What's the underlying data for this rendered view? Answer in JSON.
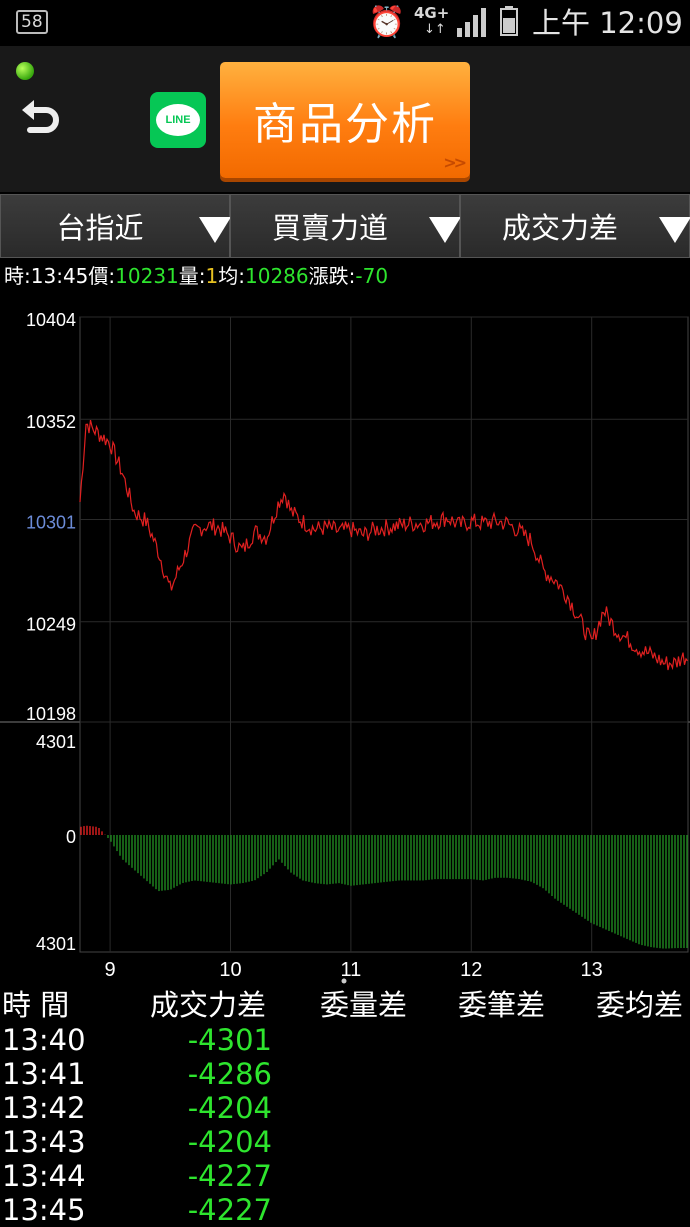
{
  "status_bar": {
    "notification_count": "58",
    "network": "4G+",
    "network_arrows": "↓↑",
    "time": "上午 12:09"
  },
  "header": {
    "line_label": "LINE",
    "title_button": "商品分析",
    "title_more": ">>"
  },
  "selectors": [
    {
      "label": "台指近"
    },
    {
      "label": "買賣力道"
    },
    {
      "label": "成交力差"
    }
  ],
  "quote": {
    "time_label": "時:",
    "time": "13:45",
    "price_label": "價:",
    "price": "10231",
    "volume_label": "量:",
    "volume": "1",
    "avg_label": "均:",
    "avg": "10286",
    "change_label": "漲跌:",
    "change": "-70"
  },
  "chart_data": {
    "type": "line",
    "price_chart": {
      "y_ticks": [
        "10404",
        "10352",
        "10301",
        "10249",
        "10198"
      ],
      "ylim": [
        10198,
        10404
      ],
      "reference_price": 10301,
      "series": [
        {
          "color": "#e02020",
          "x": [
            8.75,
            8.8,
            8.9,
            9.0,
            9.1,
            9.2,
            9.3,
            9.4,
            9.5,
            9.6,
            9.7,
            9.8,
            9.9,
            10.0,
            10.1,
            10.2,
            10.3,
            10.4,
            10.45,
            10.5,
            10.6,
            10.7,
            10.8,
            10.9,
            11.0,
            11.1,
            11.2,
            11.3,
            11.4,
            11.5,
            11.6,
            11.7,
            11.8,
            11.9,
            12.0,
            12.1,
            12.2,
            12.3,
            12.4,
            12.5,
            12.6,
            12.7,
            12.8,
            12.9,
            13.0,
            13.1,
            13.2,
            13.3,
            13.4,
            13.5,
            13.6,
            13.7,
            13.75
          ],
          "y": [
            10310,
            10350,
            10345,
            10340,
            10325,
            10305,
            10300,
            10285,
            10265,
            10280,
            10295,
            10298,
            10297,
            10292,
            10285,
            10295,
            10292,
            10310,
            10315,
            10305,
            10300,
            10296,
            10297,
            10295,
            10296,
            10293,
            10296,
            10297,
            10298,
            10299,
            10299,
            10300,
            10302,
            10298,
            10300,
            10299,
            10300,
            10299,
            10295,
            10290,
            10275,
            10270,
            10262,
            10250,
            10238,
            10255,
            10245,
            10240,
            10235,
            10232,
            10228,
            10228,
            10231
          ]
        }
      ]
    },
    "force_chart": {
      "y_ticks": [
        "4301",
        "0",
        "4301"
      ],
      "ylim": [
        -4301,
        4301
      ],
      "series": [
        {
          "color_positive": "#e02020",
          "color_negative": "#1f8a1f",
          "x": [
            8.75,
            8.8,
            8.9,
            9.0,
            9.1,
            9.2,
            9.3,
            9.4,
            9.5,
            9.6,
            9.7,
            9.8,
            9.9,
            10.0,
            10.1,
            10.2,
            10.3,
            10.4,
            10.5,
            10.6,
            10.7,
            10.8,
            10.9,
            11.0,
            11.1,
            11.2,
            11.3,
            11.4,
            11.5,
            11.6,
            11.7,
            11.8,
            11.9,
            12.0,
            12.1,
            12.2,
            12.3,
            12.4,
            12.5,
            12.6,
            12.7,
            12.8,
            12.9,
            13.0,
            13.1,
            13.2,
            13.3,
            13.4,
            13.5,
            13.6,
            13.7,
            13.75
          ],
          "y": [
            300,
            350,
            300,
            -200,
            -900,
            -1300,
            -1700,
            -2100,
            -2050,
            -1800,
            -1700,
            -1750,
            -1800,
            -1850,
            -1800,
            -1700,
            -1400,
            -900,
            -1400,
            -1700,
            -1800,
            -1850,
            -1800,
            -1900,
            -1850,
            -1800,
            -1750,
            -1700,
            -1700,
            -1700,
            -1650,
            -1650,
            -1650,
            -1650,
            -1700,
            -1600,
            -1600,
            -1650,
            -1750,
            -2000,
            -2400,
            -2700,
            -3000,
            -3300,
            -3500,
            -3700,
            -3900,
            -4100,
            -4200,
            -4250,
            -4230,
            -4227
          ]
        }
      ]
    },
    "x_ticks": [
      "9",
      "10",
      "11",
      "12",
      "13"
    ],
    "xlim": [
      8.75,
      13.8
    ],
    "grid": true
  },
  "table": {
    "headers": [
      "時 間",
      "成交力差",
      "委量差",
      "委筆差",
      "委均差"
    ],
    "rows": [
      {
        "time": "13:40",
        "value": "-4301"
      },
      {
        "time": "13:41",
        "value": "-4286"
      },
      {
        "time": "13:42",
        "value": "-4204"
      },
      {
        "time": "13:43",
        "value": "-4204"
      },
      {
        "time": "13:44",
        "value": "-4227"
      },
      {
        "time": "13:45",
        "value": "-4227"
      }
    ]
  }
}
